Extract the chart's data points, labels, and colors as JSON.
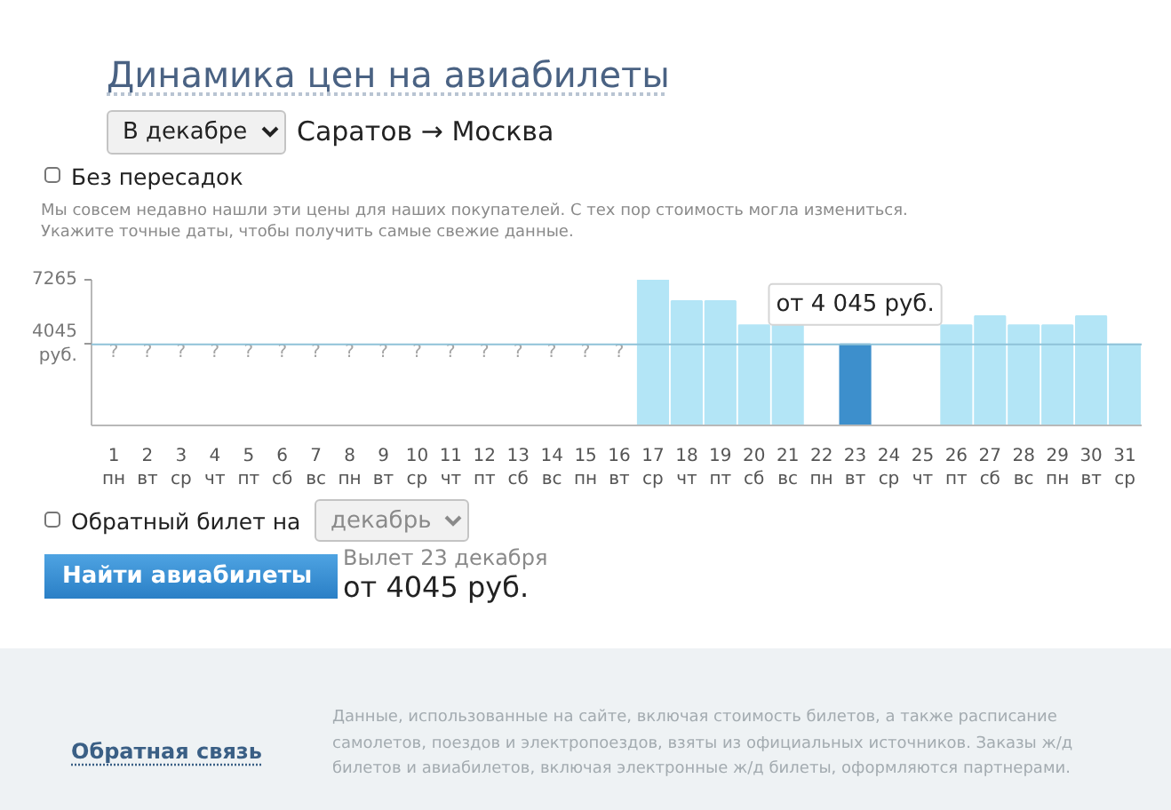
{
  "chart_data": {
    "type": "bar",
    "title": "Динамика цен на авиабилеты",
    "subtitle": "Саратов → Москва",
    "categories": [
      "1\nпн",
      "2\nвт",
      "3\nср",
      "4\nчт",
      "5\nпт",
      "6\nсб",
      "7\nвс",
      "8\nпн",
      "9\nвт",
      "10\nср",
      "11\nчт",
      "12\nпт",
      "13\nсб",
      "14\nвс",
      "15\nпн",
      "16\nвт",
      "17\nср",
      "18\nчт",
      "19\nпт",
      "20\nсб",
      "21\nвс",
      "22\nпн",
      "23\nвт",
      "24\nср",
      "25\nчт",
      "26\nпт",
      "27\nсб",
      "28\nвс",
      "29\nпн",
      "30\nвт",
      "31\nср"
    ],
    "values": [
      null,
      null,
      null,
      null,
      null,
      null,
      null,
      null,
      null,
      null,
      null,
      null,
      null,
      null,
      null,
      null,
      7265,
      6200,
      6200,
      5000,
      5000,
      null,
      4045,
      null,
      null,
      5000,
      5450,
      5000,
      5000,
      5450,
      4045
    ],
    "colors": [
      "#b3e5f6",
      "#b3e5f6",
      "#b3e5f6",
      "#b3e5f6",
      "#b3e5f6",
      "#b3e5f6",
      "#b3e5f6",
      "#b3e5f6",
      "#b3e5f6",
      "#b3e5f6",
      "#b3e5f6",
      "#b3e5f6",
      "#b3e5f6",
      "#b3e5f6",
      "#b3e5f6",
      "#b3e5f6",
      "#b3e5f6",
      "#b3e5f6",
      "#b3e5f6",
      "#b3e5f6",
      "#b3e5f6",
      "#b3e5f6",
      "#3d8fcc",
      "#b3e5f6",
      "#b3e5f6",
      "#b3e5f6",
      "#b3e5f6",
      "#b3e5f6",
      "#b3e5f6",
      "#b3e5f6",
      "#b3e5f6"
    ],
    "value_labels": [
      "?",
      "?",
      "?",
      "?",
      "?",
      "?",
      "?",
      "?",
      "?",
      "?",
      "?",
      "?",
      "?",
      "?",
      "?",
      "?",
      null,
      null,
      null,
      null,
      null,
      null,
      null,
      null,
      null,
      null,
      null,
      null,
      null,
      null,
      null
    ],
    "ylim": [
      0,
      7265
    ],
    "yticks": [
      7265,
      {
        "value": 4045,
        "label": "4045\nруб."
      }
    ],
    "ref_lines": [
      {
        "axis": "y",
        "value": 4045,
        "color": "#8fc2d8"
      }
    ],
    "annotations": [
      "В декабре",
      "Без пересадок",
      "Мы совсем недавно нашли эти цены для наших покупателей. С тех пор стоимость могла измениться.\nУкажите точные даты, чтобы получить самые свежие данные.",
      {
        "text": "от 4 045 руб.",
        "x": "23\nвт",
        "y": 4045
      },
      "Обратный билет на",
      "декабрь",
      "Найти авиабилеты",
      "Вылет 23 декабря",
      "от 4045 руб.",
      "Обратная связь",
      "Данные, использованные на сайте, включая стоимость билетов, а также расписание самолетов, поездов и электропоездов, взяты из официальных источников. Заказы ж/д билетов и авиабилетов, включая электронные ж/д билеты, оформляются партнерами."
    ]
  }
}
